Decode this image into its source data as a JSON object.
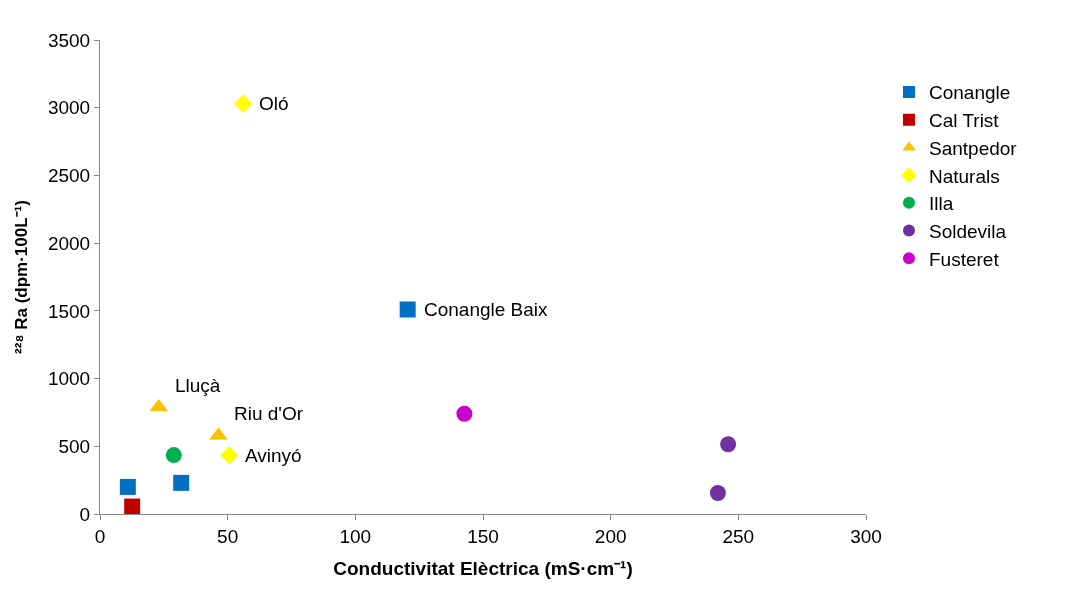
{
  "chart_data": {
    "type": "scatter",
    "xlabel": "Conductivitat Elèctrica (mS·cm⁻¹)",
    "ylabel": "²²⁸ Ra (dpm·100L⁻¹)",
    "xlim": [
      0,
      300
    ],
    "xticks": [
      0,
      50,
      100,
      150,
      200,
      250,
      300
    ],
    "ylim": [
      0,
      3500
    ],
    "yticks": [
      0,
      500,
      1000,
      1500,
      2000,
      2500,
      3000,
      3500
    ],
    "legend": "right",
    "series": [
      {
        "name": "Conangle",
        "color": "#0070c0",
        "marker": "square",
        "x": [
          10.9,
          31.8,
          120.5
        ],
        "values": [
          200,
          230,
          1510
        ]
      },
      {
        "name": "Cal Trist",
        "color": "#c00000",
        "marker": "square",
        "x": [
          12.6
        ],
        "values": [
          55
        ]
      },
      {
        "name": "Santpedor",
        "color": "#ffc000",
        "marker": "triangle",
        "x": [
          23,
          46.4
        ],
        "values": [
          790,
          580
        ]
      },
      {
        "name": "Naturals",
        "color": "#ffff00",
        "marker": "diamond",
        "x": [
          56,
          50.6
        ],
        "values": [
          3030,
          435
        ]
      },
      {
        "name": "Illa",
        "color": "#00b050",
        "marker": "circle",
        "x": [
          28.9
        ],
        "values": [
          435
        ]
      },
      {
        "name": "Soldevila",
        "color": "#7030a0",
        "marker": "circle",
        "x": [
          246,
          242
        ],
        "values": [
          515,
          155
        ]
      },
      {
        "name": "Fusteret",
        "color": "#cc00cc",
        "marker": "circle",
        "x": [
          142.7
        ],
        "values": [
          740
        ]
      }
    ],
    "annotations": [
      {
        "text": "Oló",
        "x": 56,
        "y": 3030
      },
      {
        "text": "Conangle Baix",
        "x": 120.5,
        "y": 1510
      },
      {
        "text": "Lluçà",
        "x": 23,
        "y": 790
      },
      {
        "text": "Riu d'Or",
        "x": 46.4,
        "y": 580
      },
      {
        "text": "Avinyó",
        "x": 50.6,
        "y": 435
      }
    ]
  }
}
